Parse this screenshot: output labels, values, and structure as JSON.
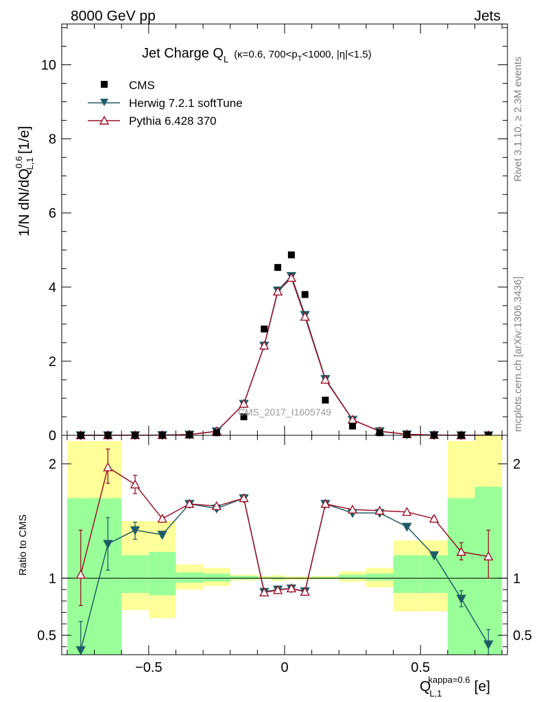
{
  "header": {
    "energy": "8000 GeV pp",
    "category": "Jets",
    "side_rivet": "Rivet 3.1.10, ≥ 2.3M events",
    "side_mcplots": "mcplots.cern.ch [arXiv:1306.3436]"
  },
  "colors": {
    "cms": "#000000",
    "herwig": "#1f5c66",
    "pythia": "#9b1026",
    "band_green": "#99ff99",
    "band_yellow": "#ffff99"
  },
  "chart_data": [
    {
      "type": "scatter",
      "title_main": "Jet Charge Q",
      "title_sub": "L",
      "title_cond": "(κ=0.6, 700<p",
      "title_cond_sub": "T",
      "title_cond_tail": "<1000, |η|<1.5)",
      "ylabel": "1/N dN/dQ",
      "ylabel_sup": "0.6",
      "ylabel_sub": "L,1",
      "ylabel_unit": "[1/e]",
      "watermark": "CMS_2017_I1605749",
      "xlim": [
        -0.82,
        0.82
      ],
      "ylim": [
        0,
        11.1
      ],
      "yticks": [
        0,
        2,
        4,
        6,
        8,
        10
      ],
      "legend": {
        "position": "top-left",
        "entries": [
          "CMS",
          "Herwig 7.2.1 softTune",
          "Pythia 6.428 370"
        ]
      },
      "x": [
        -0.75,
        -0.65,
        -0.55,
        -0.45,
        -0.35,
        -0.25,
        -0.15,
        -0.075,
        -0.025,
        0.025,
        0.075,
        0.15,
        0.25,
        0.35,
        0.45,
        0.55,
        0.65,
        0.75
      ],
      "series": [
        {
          "name": "CMS",
          "marker": "square",
          "values": [
            0.0005,
            0.001,
            0.002,
            0.004,
            0.012,
            0.07,
            0.5,
            2.87,
            4.53,
            4.87,
            3.8,
            0.95,
            0.25,
            0.07,
            0.018,
            0.005,
            0.002,
            0.001
          ]
        },
        {
          "name": "Herwig 7.2.1 softTune",
          "marker": "triangle-down",
          "values": [
            0.0002,
            0.0015,
            0.003,
            0.006,
            0.02,
            0.11,
            0.85,
            2.42,
            3.91,
            4.3,
            3.25,
            1.52,
            0.42,
            0.11,
            0.026,
            0.007,
            0.0016,
            0.0004
          ]
        },
        {
          "name": "Pythia 6.428 370",
          "marker": "triangle-up-open",
          "values": [
            0.0005,
            0.002,
            0.0035,
            0.006,
            0.02,
            0.11,
            0.85,
            2.42,
            3.88,
            4.25,
            3.2,
            1.5,
            0.42,
            0.11,
            0.028,
            0.0075,
            0.0025,
            0.0012
          ]
        }
      ]
    },
    {
      "type": "scatter",
      "ylabel": "Ratio to CMS",
      "xlabel": "Q",
      "xlabel_sub": "L,1",
      "xlabel_sup": "kappa=0.6",
      "xlabel_unit": "[e]",
      "xlim": [
        -0.82,
        0.82
      ],
      "ylim": [
        0.33,
        2.25
      ],
      "yticks": [
        0.5,
        1,
        2
      ],
      "ytick_labels": [
        "0.5",
        "1",
        "2"
      ],
      "xticks": [
        -0.5,
        0,
        0.5
      ],
      "xtick_labels": [
        "−0.5",
        "0",
        "0.5"
      ],
      "bands": {
        "edges": [
          -0.8,
          -0.6,
          -0.5,
          -0.4,
          -0.3,
          -0.2,
          -0.1,
          -0.05,
          0.0,
          0.05,
          0.1,
          0.2,
          0.3,
          0.4,
          0.5,
          0.6,
          0.7,
          0.8
        ],
        "green_lo": [
          0.3,
          0.87,
          0.85,
          0.96,
          0.97,
          0.99,
          1.0,
          0.99,
          0.995,
          0.995,
          0.995,
          0.99,
          0.98,
          0.87,
          0.87,
          0.3,
          0.3
        ],
        "green_hi": [
          1.7,
          1.2,
          1.23,
          1.05,
          1.04,
          1.02,
          1.01,
          1.01,
          1.005,
          1.005,
          1.01,
          1.03,
          1.04,
          1.2,
          1.2,
          1.7,
          1.8
        ],
        "yellow_lo": [
          0.3,
          0.72,
          0.65,
          0.9,
          0.93,
          0.98,
          0.99,
          0.975,
          0.985,
          0.985,
          0.99,
          0.97,
          0.92,
          0.71,
          0.71,
          0.3,
          0.3
        ],
        "yellow_hi": [
          2.2,
          1.5,
          1.5,
          1.12,
          1.09,
          1.03,
          1.02,
          1.025,
          1.015,
          1.015,
          1.02,
          1.06,
          1.09,
          1.33,
          1.33,
          2.2,
          2.4
        ]
      },
      "series": [
        {
          "name": "Herwig 7.2.1 softTune",
          "values": [
            0.37,
            1.3,
            1.42,
            1.38,
            1.65,
            1.61,
            1.7,
            0.88,
            0.9,
            0.91,
            0.885,
            1.65,
            1.57,
            1.57,
            1.45,
            1.2,
            0.82,
            0.42
          ],
          "err_lo": [
            0.37,
            1.07,
            1.34,
            1.36,
            1.63,
            1.59,
            1.68,
            0.87,
            0.89,
            0.9,
            0.875,
            1.64,
            1.56,
            1.56,
            1.44,
            1.19,
            0.75,
            0.33
          ],
          "err_hi": [
            0.62,
            1.53,
            1.49,
            1.41,
            1.67,
            1.63,
            1.72,
            0.89,
            0.91,
            0.92,
            0.895,
            1.66,
            1.58,
            1.58,
            1.46,
            1.22,
            0.89,
            0.55
          ]
        },
        {
          "name": "Pythia 6.428 370",
          "values": [
            1.03,
            1.97,
            1.82,
            1.52,
            1.65,
            1.63,
            1.7,
            0.875,
            0.895,
            0.91,
            0.88,
            1.65,
            1.6,
            1.59,
            1.58,
            1.52,
            1.23,
            1.19
          ],
          "err_lo": [
            0.76,
            1.83,
            1.74,
            1.5,
            1.64,
            1.62,
            1.69,
            0.865,
            0.885,
            0.9,
            0.87,
            1.64,
            1.59,
            1.58,
            1.57,
            1.5,
            1.16,
            1.0
          ],
          "err_hi": [
            1.42,
            2.13,
            1.9,
            1.54,
            1.66,
            1.64,
            1.71,
            0.885,
            0.905,
            0.92,
            0.89,
            1.66,
            1.61,
            1.6,
            1.59,
            1.54,
            1.31,
            1.42
          ]
        }
      ]
    }
  ]
}
